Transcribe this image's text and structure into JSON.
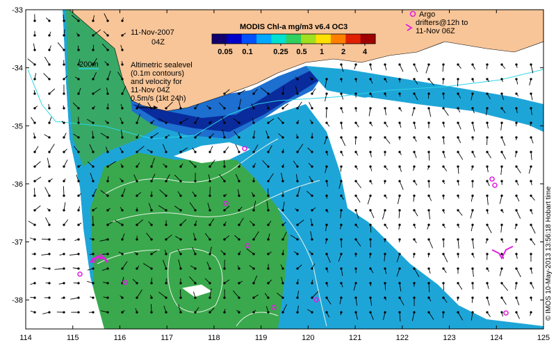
{
  "figure": {
    "date": "11-Nov-2007",
    "time": "04Z",
    "colorbar_title": "MODIS Chl-a mg/m3 v6.4 OC3",
    "colorbar_ticks": [
      "0.05",
      "0.1",
      "0.25",
      "0.5",
      "1",
      "2",
      "4"
    ],
    "colorbar_colors": [
      "#12006e",
      "#0000c8",
      "#0050ff",
      "#00a8ff",
      "#00e0d0",
      "#30d060",
      "#a0e020",
      "#ffe000",
      "#ff8000",
      "#e02000",
      "#a00000"
    ],
    "isobath_label": "200m",
    "sealevel_note": [
      "Altimetric sealevel",
      "(0.1m contours)",
      "and velocity for",
      "11-Nov 04Z"
    ],
    "velocity_scale_label": "0.5m/s (1kt 24h)",
    "argo_legend": [
      "Argo",
      "drifters@12h to",
      "11-Nov 06Z"
    ],
    "credit": "© IMOS 10-May-2013 13:56:18 Hobart time",
    "lon_ticks": [
      "114",
      "115",
      "116",
      "117",
      "118",
      "119",
      "120",
      "121",
      "122",
      "123",
      "124",
      "125"
    ],
    "lat_ticks": [
      "-33",
      "-34",
      "-35",
      "-36",
      "-37",
      "-38"
    ],
    "lon_range": [
      114,
      125
    ],
    "lat_range": [
      -38.5,
      -33
    ],
    "colors": {
      "land": "#f8c598",
      "cloud": "#ffffff",
      "ocean_green": "#3aa84c",
      "ocean_cyan": "#1ea5d8",
      "ocean_blue": "#1d6fd0",
      "coast_dark": "#0a2b9c",
      "isobath": "#29d6e6",
      "contour": "#e8f4e8",
      "argo": "#e020e0",
      "arrow": "#000000"
    }
  }
}
